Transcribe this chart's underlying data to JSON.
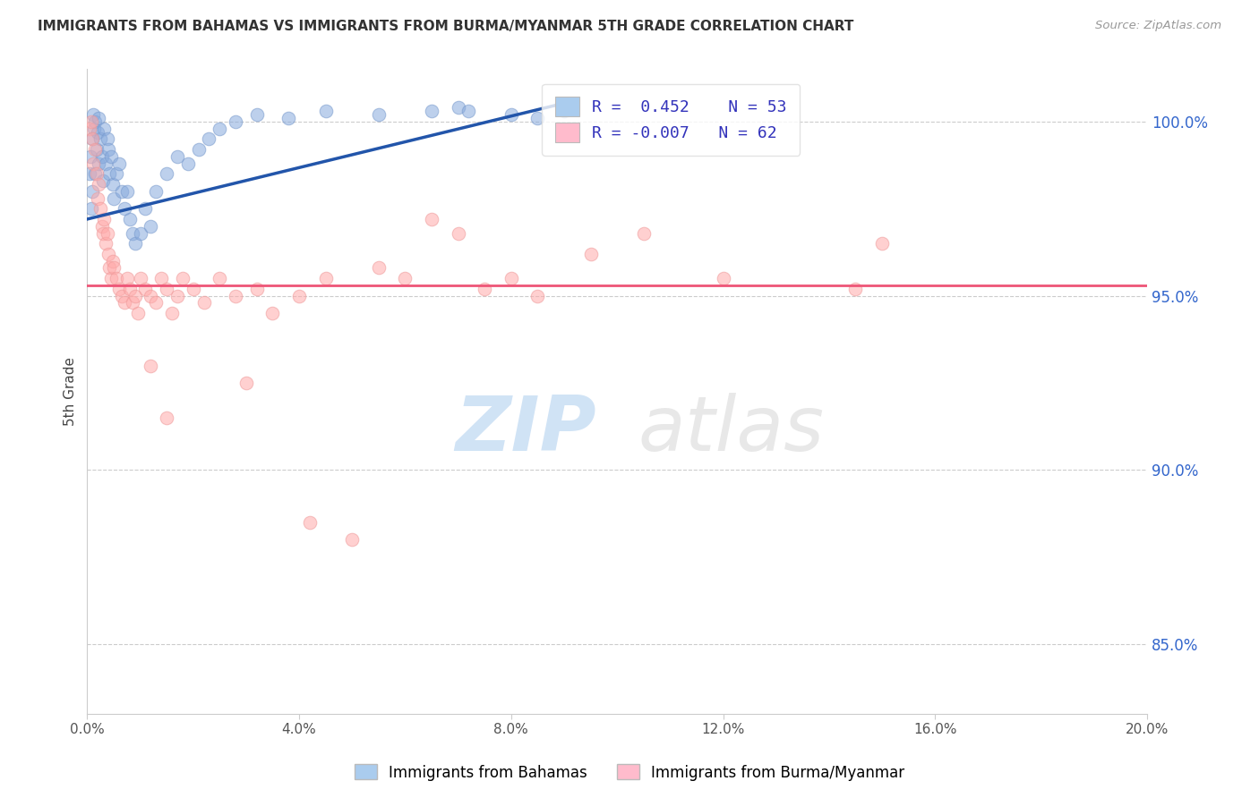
{
  "title": "IMMIGRANTS FROM BAHAMAS VS IMMIGRANTS FROM BURMA/MYANMAR 5TH GRADE CORRELATION CHART",
  "source": "Source: ZipAtlas.com",
  "ylabel": "5th Grade",
  "ylabel_color": "#444444",
  "right_yticks": [
    100.0,
    95.0,
    90.0,
    85.0
  ],
  "right_ytick_color": "#3366cc",
  "legend_r1": "R =  0.452",
  "legend_n1": "N = 53",
  "legend_r2": "R = -0.007",
  "legend_n2": "N = 62",
  "legend_color1": "#aaccee",
  "legend_color2": "#ffbbcc",
  "legend_text_color": "#3333bb",
  "blue_color": "#88aadd",
  "pink_color": "#ffaaaa",
  "trend_blue": "#2255aa",
  "trend_pink": "#ee5577",
  "watermark_ZIP_color": "#aaccee",
  "watermark_atlas_color": "#cccccc",
  "background": "#ffffff",
  "grid_color": "#cccccc",
  "xmin": 0.0,
  "xmax": 20.0,
  "ymin": 83.0,
  "ymax": 101.5,
  "blue_x": [
    0.05,
    0.07,
    0.08,
    0.1,
    0.1,
    0.12,
    0.13,
    0.15,
    0.15,
    0.18,
    0.2,
    0.22,
    0.22,
    0.25,
    0.28,
    0.3,
    0.32,
    0.35,
    0.38,
    0.4,
    0.42,
    0.45,
    0.48,
    0.5,
    0.55,
    0.6,
    0.65,
    0.7,
    0.75,
    0.8,
    0.85,
    0.9,
    1.0,
    1.1,
    1.2,
    1.3,
    1.5,
    1.7,
    1.9,
    2.1,
    2.3,
    2.5,
    2.8,
    3.2,
    3.8,
    4.5,
    5.5,
    6.5,
    7.0,
    7.2,
    8.0,
    8.5,
    9.0
  ],
  "blue_y": [
    98.5,
    99.0,
    97.5,
    99.5,
    98.0,
    100.2,
    99.8,
    100.0,
    98.5,
    99.2,
    99.7,
    100.1,
    98.8,
    99.5,
    99.0,
    98.3,
    99.8,
    98.8,
    99.5,
    99.2,
    98.5,
    99.0,
    98.2,
    97.8,
    98.5,
    98.8,
    98.0,
    97.5,
    98.0,
    97.2,
    96.8,
    96.5,
    96.8,
    97.5,
    97.0,
    98.0,
    98.5,
    99.0,
    98.8,
    99.2,
    99.5,
    99.8,
    100.0,
    100.2,
    100.1,
    100.3,
    100.2,
    100.3,
    100.4,
    100.3,
    100.2,
    100.1,
    100.3
  ],
  "pink_x": [
    0.05,
    0.08,
    0.1,
    0.12,
    0.15,
    0.18,
    0.2,
    0.22,
    0.25,
    0.28,
    0.3,
    0.32,
    0.35,
    0.38,
    0.4,
    0.42,
    0.45,
    0.48,
    0.5,
    0.55,
    0.6,
    0.65,
    0.7,
    0.75,
    0.8,
    0.85,
    0.9,
    0.95,
    1.0,
    1.1,
    1.2,
    1.3,
    1.4,
    1.5,
    1.6,
    1.7,
    1.8,
    2.0,
    2.2,
    2.5,
    2.8,
    3.2,
    3.5,
    4.0,
    4.5,
    5.5,
    6.5,
    7.0,
    8.0,
    9.5,
    10.5,
    12.0,
    14.5,
    15.0,
    3.0,
    1.2,
    1.5,
    4.2,
    5.0,
    6.0,
    7.5,
    8.5
  ],
  "pink_y": [
    99.8,
    100.0,
    99.5,
    98.8,
    99.2,
    98.5,
    97.8,
    98.2,
    97.5,
    97.0,
    96.8,
    97.2,
    96.5,
    96.8,
    96.2,
    95.8,
    95.5,
    96.0,
    95.8,
    95.5,
    95.2,
    95.0,
    94.8,
    95.5,
    95.2,
    94.8,
    95.0,
    94.5,
    95.5,
    95.2,
    95.0,
    94.8,
    95.5,
    95.2,
    94.5,
    95.0,
    95.5,
    95.2,
    94.8,
    95.5,
    95.0,
    95.2,
    94.5,
    95.0,
    95.5,
    95.8,
    97.2,
    96.8,
    95.5,
    96.2,
    96.8,
    95.5,
    95.2,
    96.5,
    92.5,
    93.0,
    91.5,
    88.5,
    88.0,
    95.5,
    95.2,
    95.0
  ],
  "trend_blue_x0": 0.0,
  "trend_blue_x1": 9.2,
  "trend_blue_y0": 97.2,
  "trend_blue_y1": 100.6,
  "trend_pink_y": 95.3
}
